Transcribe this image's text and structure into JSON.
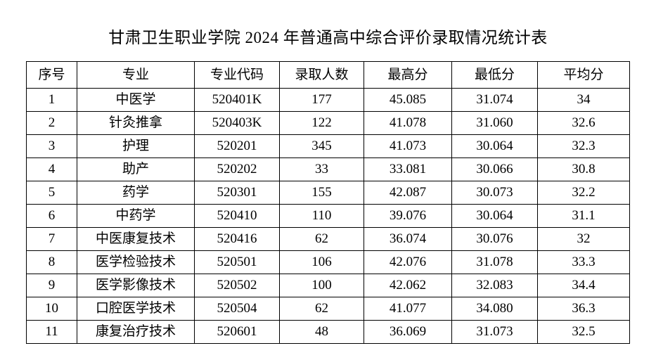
{
  "page": {
    "title": "甘肃卫生职业学院 2024 年普通高中综合评价录取情况统计表"
  },
  "table": {
    "columns": [
      "序号",
      "专业",
      "专业代码",
      "录取人数",
      "最高分",
      "最低分",
      "平均分"
    ],
    "rows": [
      [
        "1",
        "中医学",
        "520401K",
        "177",
        "45.085",
        "31.074",
        "34"
      ],
      [
        "2",
        "针灸推拿",
        "520403K",
        "122",
        "41.078",
        "31.060",
        "32.6"
      ],
      [
        "3",
        "护理",
        "520201",
        "345",
        "41.073",
        "30.064",
        "32.3"
      ],
      [
        "4",
        "助产",
        "520202",
        "33",
        "33.081",
        "30.066",
        "30.8"
      ],
      [
        "5",
        "药学",
        "520301",
        "155",
        "42.087",
        "30.073",
        "32.2"
      ],
      [
        "6",
        "中药学",
        "520410",
        "110",
        "39.076",
        "30.064",
        "31.1"
      ],
      [
        "7",
        "中医康复技术",
        "520416",
        "62",
        "36.074",
        "30.076",
        "32"
      ],
      [
        "8",
        "医学检验技术",
        "520501",
        "106",
        "42.076",
        "31.078",
        "33.3"
      ],
      [
        "9",
        "医学影像技术",
        "520502",
        "100",
        "42.062",
        "32.083",
        "34.4"
      ],
      [
        "10",
        "口腔医学技术",
        "520504",
        "62",
        "41.077",
        "34.080",
        "36.3"
      ],
      [
        "11",
        "康复治疗技术",
        "520601",
        "48",
        "36.069",
        "31.073",
        "32.5"
      ]
    ]
  },
  "colors": {
    "background": "#ffffff",
    "text": "#000000",
    "border": "#000000"
  }
}
